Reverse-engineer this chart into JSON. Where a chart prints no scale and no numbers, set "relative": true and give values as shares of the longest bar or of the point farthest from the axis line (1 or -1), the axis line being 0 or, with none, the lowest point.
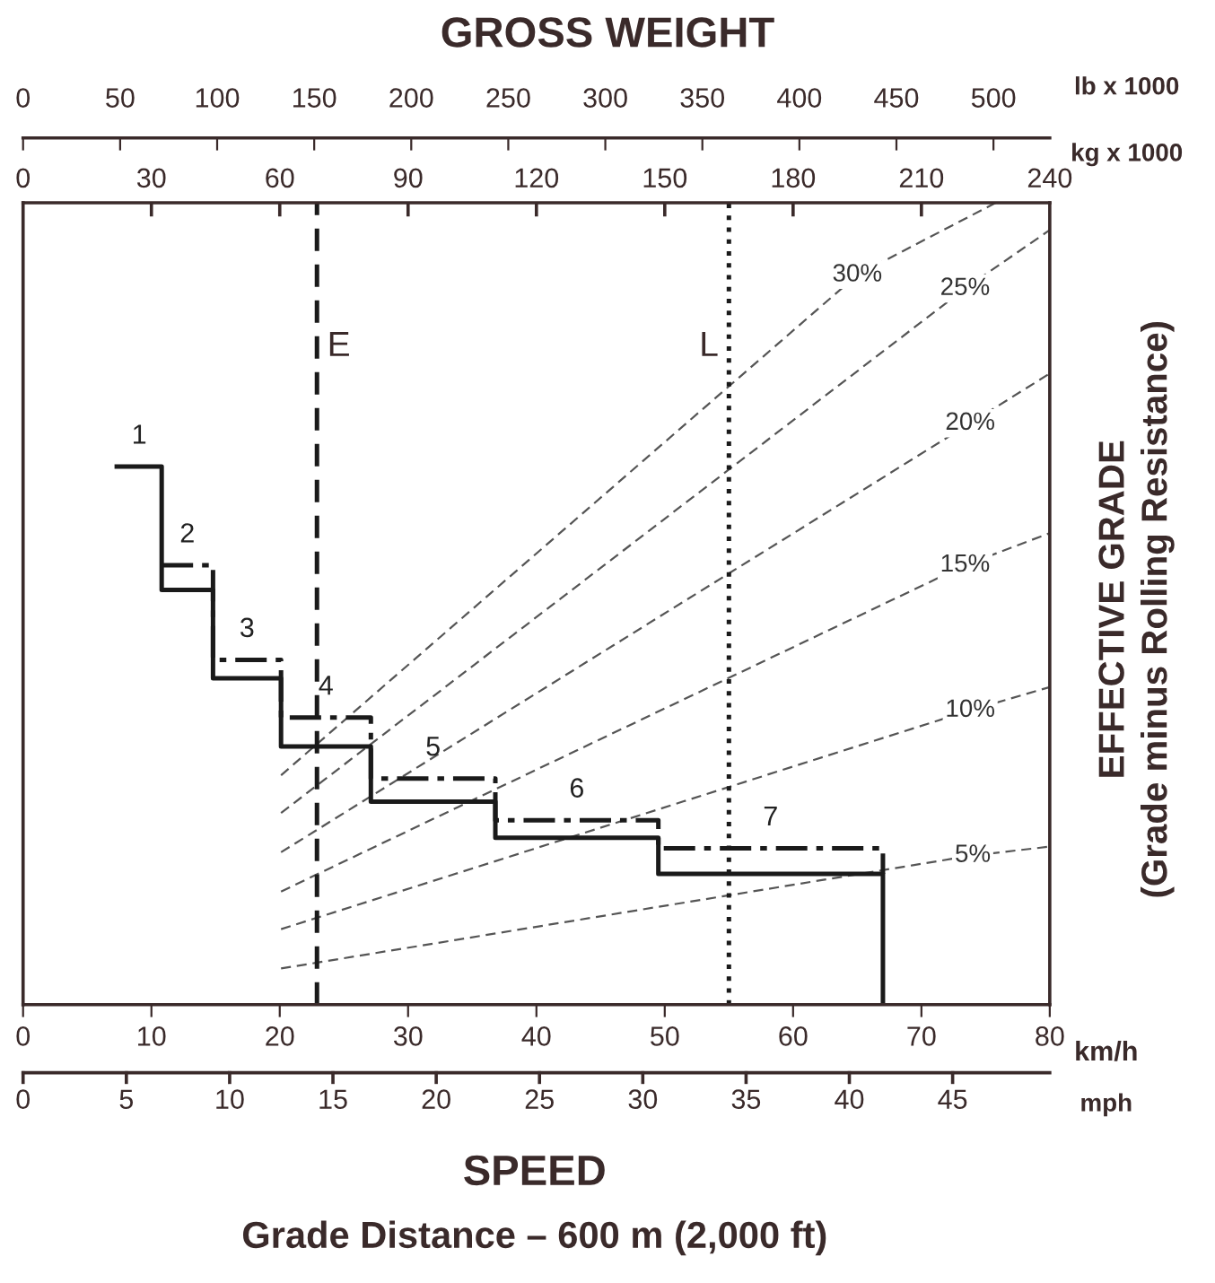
{
  "chart_data": {
    "type": "line",
    "relative": true,
    "title": "GROSS WEIGHT",
    "xlabel": "km/h",
    "ylabel": "EFFECTIVE GRADE\n(Grade minus Rolling Resistance)",
    "xlim": [
      0,
      80
    ],
    "xticks": [
      0,
      10,
      20,
      30,
      40,
      50,
      60,
      70,
      80
    ],
    "x2label": "lb x 1000",
    "x2lim": [
      0,
      529
    ],
    "x2ticks": [
      0,
      50,
      100,
      150,
      200,
      250,
      300,
      350,
      400,
      450,
      500
    ],
    "grid": false,
    "marker": "none",
    "series": [
      {
        "name": "5%",
        "color": "#555555",
        "line_style": "dashed",
        "x": [
          20.1,
          74.0,
          80
        ],
        "values": [
          0.045,
          0.186,
          0.197
        ]
      },
      {
        "name": "10%",
        "color": "#555555",
        "line_style": "dashed",
        "x": [
          20.1,
          73.8,
          80
        ],
        "values": [
          0.094,
          0.367,
          0.396
        ]
      },
      {
        "name": "15%",
        "color": "#555555",
        "line_style": "dashed",
        "x": [
          20.1,
          73.4,
          80
        ],
        "values": [
          0.141,
          0.548,
          0.588
        ]
      },
      {
        "name": "20%",
        "color": "#555555",
        "line_style": "dashed",
        "x": [
          20.1,
          73.8,
          80
        ],
        "values": [
          0.19,
          0.725,
          0.787
        ]
      },
      {
        "name": "25%",
        "color": "#555555",
        "line_style": "dashed",
        "x": [
          20.1,
          73.4,
          80
        ],
        "values": [
          0.239,
          0.893,
          0.966
        ]
      },
      {
        "name": "30%",
        "color": "#555555",
        "line_style": "dashed",
        "x": [
          20.1,
          65.0,
          75.8
        ],
        "values": [
          0.286,
          0.91,
          1.0
        ]
      },
      {
        "color": "#1a1a1a",
        "line_style": "solid",
        "x": [
          7.3,
          10.8,
          10.8,
          14.8,
          14.8,
          20.1,
          20.1,
          27.1,
          27.1,
          36.8,
          36.8,
          49.5,
          49.5,
          67.0,
          67.0
        ],
        "values": [
          0.671,
          0.671,
          0.517,
          0.517,
          0.407,
          0.407,
          0.322,
          0.322,
          0.253,
          0.253,
          0.208,
          0.208,
          0.163,
          0.163,
          0
        ]
      },
      {
        "color": "#1a1a1a",
        "line_style": "dashdot",
        "x": [
          10.8,
          14.8,
          14.8,
          20.1,
          20.1,
          27.1,
          27.1,
          36.8,
          36.8,
          49.5,
          49.5,
          67.0,
          67.0
        ],
        "values": [
          0.548,
          0.548,
          0.43,
          0.43,
          0.358,
          0.358,
          0.282,
          0.282,
          0.23,
          0.23,
          0.195,
          0.195,
          0.163
        ]
      }
    ],
    "ref_lines": [
      {
        "axis": "x",
        "value": 22.9,
        "label": "E",
        "line_style": "dashed",
        "color": "#1a1a1a"
      },
      {
        "axis": "x",
        "value": 55.0,
        "label": "L",
        "line_style": "dotted",
        "color": "#1a1a1a"
      }
    ],
    "annotations": [
      "SPEED",
      "Grade Distance – 600 m (2,000 ft)",
      "kg x 1000",
      "mph",
      "0",
      "30",
      "60",
      "90",
      "120",
      "150",
      "180",
      "210",
      "240",
      "0",
      "5",
      "10",
      "15",
      "20",
      "25",
      "30",
      "35",
      "40",
      "45",
      {
        "text": "1",
        "x": 9.05,
        "y": 0.671
      },
      {
        "text": "2",
        "x": 12.8,
        "y": 0.548
      },
      {
        "text": "3",
        "x": 17.45,
        "y": 0.43
      },
      {
        "text": "4",
        "x": 23.6,
        "y": 0.358
      },
      {
        "text": "5",
        "x": 31.95,
        "y": 0.282
      },
      {
        "text": "6",
        "x": 43.15,
        "y": 0.23
      },
      {
        "text": "7",
        "x": 58.25,
        "y": 0.195
      }
    ]
  }
}
